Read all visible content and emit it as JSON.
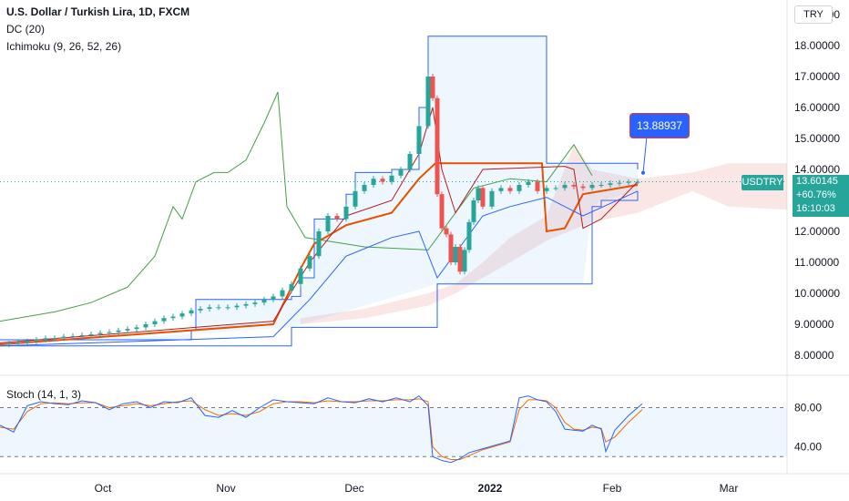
{
  "header": {
    "title": "U.S. Dollar / Turkish Lira, 1D, FXCM",
    "indicator_1": "DC (20)",
    "indicator_2": "Ichimoku (9, 26, 52, 26)",
    "currency": "TRY"
  },
  "callout": {
    "value": "13.88937"
  },
  "last_price": {
    "symbol": "USDTRY",
    "price": "13.60145",
    "change": "+60.76%",
    "countdown": "16:10:03"
  },
  "stoch_panel": {
    "label": "Stoch (14, 1, 3)",
    "ticks": [
      "80.00",
      "40.00"
    ]
  },
  "colors": {
    "up": "#26a69a",
    "down": "#ef5350",
    "donchian": "#2962ff",
    "tenkan": "#2962ff",
    "kijun": "#b71c1c",
    "lagging": "#43a047",
    "kijun_orange": "#e65100",
    "stoch_k": "#2962ff",
    "stoch_d": "#ef6c00"
  },
  "chart_data": {
    "type": "line",
    "title": "U.S. Dollar / Turkish Lira, 1D, FXCM",
    "y_ticks": [
      "19.00000",
      "18.00000",
      "17.00000",
      "16.00000",
      "15.00000",
      "14.00000",
      "12.00000",
      "11.00000",
      "10.00000",
      "9.00000",
      "8.00000"
    ],
    "x_ticks": [
      "Oct",
      "Nov",
      "Dec",
      "2022",
      "Feb",
      "Mar"
    ],
    "ylim": [
      7.5,
      19.2
    ],
    "close_series": {
      "name": "USDTRY close",
      "points": [
        [
          0,
          8.35
        ],
        [
          10,
          8.38
        ],
        [
          20,
          8.4
        ],
        [
          30,
          8.45
        ],
        [
          40,
          8.5
        ],
        [
          50,
          8.55
        ],
        [
          60,
          8.55
        ],
        [
          70,
          8.6
        ],
        [
          80,
          8.62
        ],
        [
          90,
          8.65
        ],
        [
          100,
          8.68
        ],
        [
          110,
          8.72
        ],
        [
          120,
          8.75
        ],
        [
          130,
          8.8
        ],
        [
          140,
          8.85
        ],
        [
          150,
          8.9
        ],
        [
          160,
          9.0
        ],
        [
          170,
          9.1
        ],
        [
          180,
          9.2
        ],
        [
          190,
          9.25
        ],
        [
          200,
          9.35
        ],
        [
          210,
          9.45
        ],
        [
          220,
          9.5
        ],
        [
          230,
          9.55
        ],
        [
          240,
          9.55
        ],
        [
          250,
          9.55
        ],
        [
          260,
          9.6
        ],
        [
          270,
          9.65
        ],
        [
          280,
          9.7
        ],
        [
          290,
          9.8
        ],
        [
          300,
          9.9
        ],
        [
          310,
          10.1
        ],
        [
          320,
          10.3
        ],
        [
          330,
          10.8
        ],
        [
          340,
          11.2
        ],
        [
          350,
          12.0
        ],
        [
          360,
          12.5
        ],
        [
          370,
          12.4
        ],
        [
          380,
          12.8
        ],
        [
          390,
          13.3
        ],
        [
          400,
          13.5
        ],
        [
          410,
          13.7
        ],
        [
          420,
          13.6
        ],
        [
          430,
          13.8
        ],
        [
          440,
          14.0
        ],
        [
          450,
          14.5
        ],
        [
          460,
          15.4
        ],
        [
          470,
          17.0
        ],
        [
          475,
          16.3
        ],
        [
          480,
          13.2
        ],
        [
          485,
          12.1
        ],
        [
          490,
          11.9
        ],
        [
          495,
          11.0
        ],
        [
          500,
          11.5
        ],
        [
          505,
          10.7
        ],
        [
          510,
          11.4
        ],
        [
          515,
          12.3
        ],
        [
          520,
          13.0
        ],
        [
          525,
          13.4
        ],
        [
          530,
          12.8
        ],
        [
          540,
          13.3
        ],
        [
          550,
          13.4
        ],
        [
          560,
          13.3
        ],
        [
          570,
          13.5
        ],
        [
          580,
          13.6
        ],
        [
          590,
          13.3
        ],
        [
          600,
          13.4
        ],
        [
          610,
          13.4
        ],
        [
          620,
          13.5
        ],
        [
          630,
          13.45
        ],
        [
          640,
          13.4
        ],
        [
          650,
          13.5
        ],
        [
          660,
          13.5
        ],
        [
          670,
          13.55
        ],
        [
          680,
          13.57
        ],
        [
          690,
          13.6
        ],
        [
          700,
          13.6
        ]
      ]
    },
    "stoch": {
      "ylim": [
        20,
        100
      ],
      "k_points": [
        [
          0,
          62
        ],
        [
          15,
          55
        ],
        [
          30,
          82
        ],
        [
          45,
          86
        ],
        [
          60,
          84
        ],
        [
          75,
          83
        ],
        [
          90,
          87
        ],
        [
          105,
          85
        ],
        [
          120,
          78
        ],
        [
          135,
          84
        ],
        [
          150,
          86
        ],
        [
          165,
          80
        ],
        [
          180,
          86
        ],
        [
          195,
          85
        ],
        [
          210,
          90
        ],
        [
          225,
          72
        ],
        [
          240,
          70
        ],
        [
          255,
          77
        ],
        [
          270,
          70
        ],
        [
          285,
          80
        ],
        [
          300,
          88
        ],
        [
          315,
          86
        ],
        [
          330,
          85
        ],
        [
          345,
          84
        ],
        [
          360,
          90
        ],
        [
          375,
          86
        ],
        [
          390,
          85
        ],
        [
          405,
          89
        ],
        [
          420,
          86
        ],
        [
          435,
          90
        ],
        [
          450,
          86
        ],
        [
          460,
          92
        ],
        [
          470,
          82
        ],
        [
          475,
          30
        ],
        [
          485,
          26
        ],
        [
          495,
          24
        ],
        [
          505,
          28
        ],
        [
          515,
          34
        ],
        [
          530,
          38
        ],
        [
          545,
          42
        ],
        [
          560,
          46
        ],
        [
          570,
          90
        ],
        [
          580,
          92
        ],
        [
          590,
          88
        ],
        [
          600,
          86
        ],
        [
          610,
          76
        ],
        [
          620,
          58
        ],
        [
          630,
          57
        ],
        [
          640,
          56
        ],
        [
          650,
          62
        ],
        [
          660,
          58
        ],
        [
          665,
          35
        ],
        [
          675,
          57
        ],
        [
          690,
          72
        ],
        [
          705,
          84
        ]
      ],
      "d_points": [
        [
          0,
          60
        ],
        [
          15,
          58
        ],
        [
          30,
          76
        ],
        [
          45,
          84
        ],
        [
          60,
          85
        ],
        [
          75,
          84
        ],
        [
          90,
          85
        ],
        [
          105,
          85
        ],
        [
          120,
          80
        ],
        [
          135,
          82
        ],
        [
          150,
          84
        ],
        [
          165,
          82
        ],
        [
          180,
          84
        ],
        [
          195,
          86
        ],
        [
          210,
          87
        ],
        [
          225,
          78
        ],
        [
          240,
          72
        ],
        [
          255,
          74
        ],
        [
          270,
          72
        ],
        [
          285,
          76
        ],
        [
          300,
          84
        ],
        [
          315,
          86
        ],
        [
          330,
          86
        ],
        [
          345,
          85
        ],
        [
          360,
          87
        ],
        [
          375,
          86
        ],
        [
          390,
          86
        ],
        [
          405,
          87
        ],
        [
          420,
          87
        ],
        [
          435,
          88
        ],
        [
          450,
          88
        ],
        [
          460,
          89
        ],
        [
          470,
          86
        ],
        [
          475,
          40
        ],
        [
          485,
          30
        ],
        [
          495,
          27
        ],
        [
          505,
          27
        ],
        [
          515,
          31
        ],
        [
          530,
          37
        ],
        [
          545,
          41
        ],
        [
          560,
          45
        ],
        [
          570,
          78
        ],
        [
          580,
          88
        ],
        [
          590,
          88
        ],
        [
          600,
          87
        ],
        [
          610,
          80
        ],
        [
          620,
          65
        ],
        [
          630,
          58
        ],
        [
          640,
          57
        ],
        [
          650,
          60
        ],
        [
          660,
          59
        ],
        [
          665,
          45
        ],
        [
          675,
          50
        ],
        [
          690,
          65
        ],
        [
          705,
          78
        ]
      ]
    }
  }
}
